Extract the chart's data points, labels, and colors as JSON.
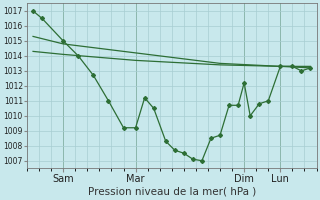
{
  "bg_color": "#c8e8ec",
  "grid_color": "#a8cdd2",
  "line_color": "#2d6e35",
  "xlabel": "Pression niveau de la mer( hPa )",
  "ylim": [
    1006.5,
    1017.5
  ],
  "xlim": [
    0,
    96
  ],
  "yticks": [
    1007,
    1008,
    1009,
    1010,
    1011,
    1012,
    1013,
    1014,
    1015,
    1016,
    1017
  ],
  "xtick_positions": [
    12,
    36,
    72,
    84
  ],
  "xtick_labels": [
    "Sam",
    "Mar",
    "Dim",
    "Lun"
  ],
  "vline_positions": [
    12,
    36,
    72,
    84
  ],
  "series_jagged_x": [
    2,
    5,
    12,
    17,
    22,
    27,
    32,
    36,
    39,
    42,
    46,
    49,
    52,
    55,
    58,
    61,
    64,
    67,
    70,
    72,
    74,
    77,
    80,
    84,
    88,
    91,
    94
  ],
  "series_jagged_y": [
    1017,
    1016.5,
    1015,
    1014.0,
    1012.7,
    1011.0,
    1009.2,
    1009.2,
    1011.2,
    1010.5,
    1008.3,
    1007.7,
    1007.5,
    1007.1,
    1007.0,
    1008.5,
    1008.7,
    1010.7,
    1010.7,
    1012.2,
    1010.0,
    1010.8,
    1011.0,
    1013.3,
    1013.3,
    1013.0,
    1013.2
  ],
  "series_upper_x": [
    2,
    12,
    36,
    64,
    84,
    94
  ],
  "series_upper_y": [
    1014.3,
    1014.1,
    1013.7,
    1013.4,
    1013.3,
    1013.3
  ],
  "series_lower_x": [
    2,
    12,
    36,
    64,
    84,
    94
  ],
  "series_lower_y": [
    1015.3,
    1014.8,
    1014.2,
    1013.5,
    1013.3,
    1013.2
  ],
  "marker_style": "D",
  "markersize": 2.0,
  "linewidth": 0.9,
  "ylabel_fontsize": 6.0,
  "xlabel_fontsize": 7.5,
  "xtick_fontsize": 7.0,
  "ytick_fontsize": 5.5
}
